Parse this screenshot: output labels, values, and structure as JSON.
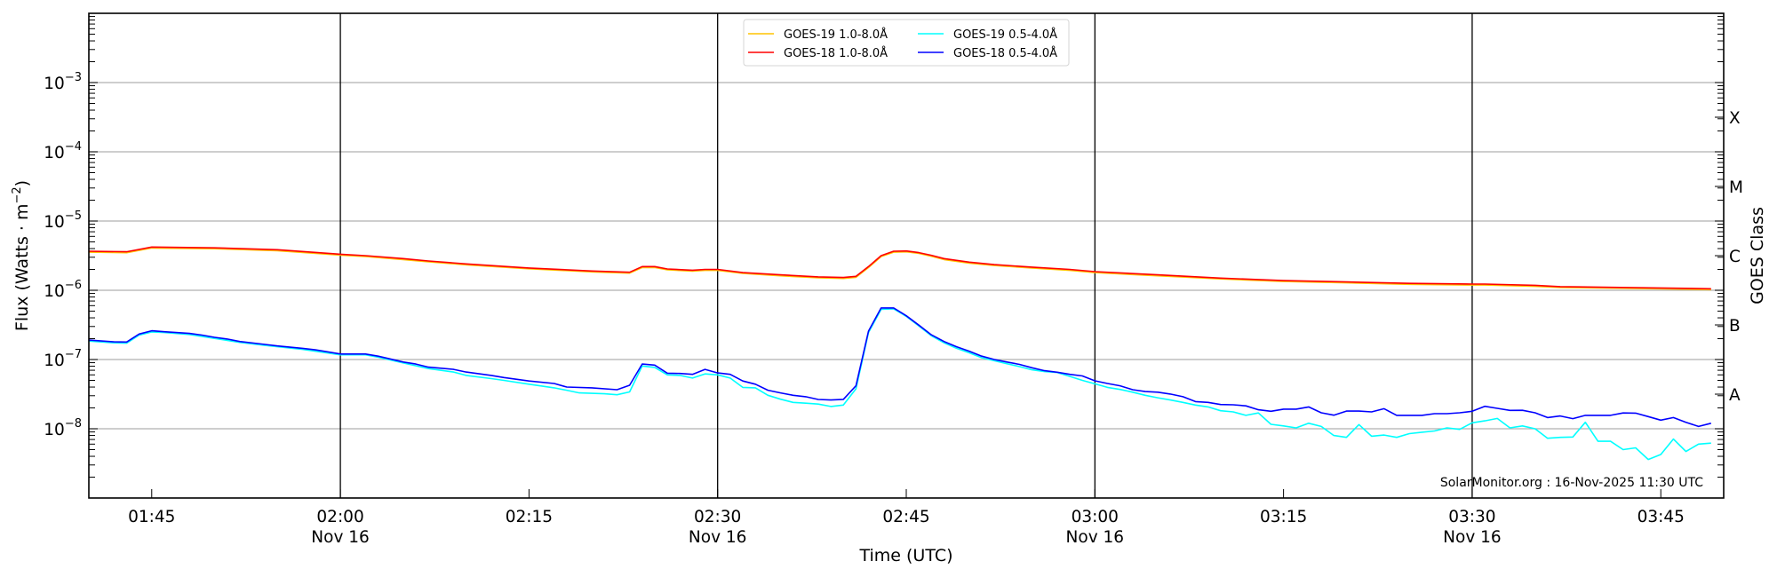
{
  "chart_data": {
    "type": "line",
    "title": "",
    "xlabel": "Time (UTC)",
    "ylabel": {
      "text": "Flux (Watts · m",
      "sup": "−2",
      "close": ")"
    },
    "right_label": "GOES Class",
    "y_scale": "log",
    "ylim": [
      1e-09,
      0.01
    ],
    "xlim": [
      "01:40",
      "03:50"
    ],
    "grid": {
      "horizontal_at_decades": true,
      "vertical_lines_every_minutes": 30
    },
    "legend_placement": "top-center",
    "y_tick_base": "10",
    "y_tick_exponents": [
      "−3",
      "−4",
      "−5",
      "−6",
      "−7",
      "−8"
    ],
    "y_tick_values": [
      0.001,
      0.0001,
      1e-05,
      1e-06,
      1e-07,
      1e-08
    ],
    "x_ticks": [
      {
        "time": "01:45",
        "label": "01:45",
        "date": ""
      },
      {
        "time": "02:00",
        "label": "02:00",
        "date": "Nov 16"
      },
      {
        "time": "02:15",
        "label": "02:15",
        "date": ""
      },
      {
        "time": "02:30",
        "label": "02:30",
        "date": "Nov 16"
      },
      {
        "time": "02:45",
        "label": "02:45",
        "date": ""
      },
      {
        "time": "03:00",
        "label": "03:00",
        "date": "Nov 16"
      },
      {
        "time": "03:15",
        "label": "03:15",
        "date": ""
      },
      {
        "time": "03:30",
        "label": "03:30",
        "date": "Nov 16"
      },
      {
        "time": "03:45",
        "label": "03:45",
        "date": ""
      }
    ],
    "goes_classes": [
      {
        "label": "X",
        "flux": 0.000316
      },
      {
        "label": "M",
        "flux": 3.16e-05
      },
      {
        "label": "C",
        "flux": 3.16e-06
      },
      {
        "label": "B",
        "flux": 3.16e-07
      },
      {
        "label": "A",
        "flux": 3.16e-08
      }
    ],
    "annotation": "SolarMonitor.org : 16-Nov-2025 11:30 UTC",
    "series": [
      {
        "name": "GOES-19 1.0-8.0Å",
        "color": "#ffc400",
        "x": [
          "01:40",
          "01:43",
          "01:45",
          "01:50",
          "01:55",
          "02:00",
          "02:02",
          "02:05",
          "02:07",
          "02:10",
          "02:15",
          "02:20",
          "02:23",
          "02:24",
          "02:25",
          "02:26",
          "02:28",
          "02:29",
          "02:30",
          "02:32",
          "02:35",
          "02:38",
          "02:40",
          "02:41",
          "02:42",
          "02:43",
          "02:44",
          "02:45",
          "02:46",
          "02:47",
          "02:48",
          "02:50",
          "02:52",
          "02:55",
          "02:58",
          "03:00",
          "03:05",
          "03:10",
          "03:15",
          "03:20",
          "03:25",
          "03:30",
          "03:31",
          "03:35",
          "03:37",
          "03:45",
          "03:49"
        ],
        "y": [
          3.55e-06,
          3.49e-06,
          4.08e-06,
          3.98e-06,
          3.73e-06,
          3.22e-06,
          3.07e-06,
          2.78e-06,
          2.57e-06,
          2.33e-06,
          2.04e-06,
          1.84e-06,
          1.77e-06,
          2.13e-06,
          2.13e-06,
          1.97e-06,
          1.89e-06,
          1.94e-06,
          1.94e-06,
          1.75e-06,
          1.62e-06,
          1.51e-06,
          1.48e-06,
          1.54e-06,
          2.13e-06,
          3.07e-06,
          3.55e-06,
          3.59e-06,
          3.4e-06,
          3.1e-06,
          2.78e-06,
          2.47e-06,
          2.28e-06,
          2.1e-06,
          1.94e-06,
          1.8e-06,
          1.62e-06,
          1.46e-06,
          1.34e-06,
          1.28e-06,
          1.22e-06,
          1.19e-06,
          1.19e-06,
          1.14e-06,
          1.1e-06,
          1.05e-06,
          1.02e-06
        ]
      },
      {
        "name": "GOES-18 1.0-8.0Å",
        "color": "#ff0000",
        "x": [
          "01:40",
          "01:43",
          "01:45",
          "01:50",
          "01:55",
          "02:00",
          "02:02",
          "02:05",
          "02:07",
          "02:10",
          "02:15",
          "02:20",
          "02:23",
          "02:24",
          "02:25",
          "02:26",
          "02:28",
          "02:29",
          "02:30",
          "02:32",
          "02:35",
          "02:38",
          "02:40",
          "02:41",
          "02:42",
          "02:43",
          "02:44",
          "02:45",
          "02:46",
          "02:47",
          "02:48",
          "02:50",
          "02:52",
          "02:55",
          "02:58",
          "03:00",
          "03:05",
          "03:10",
          "03:15",
          "03:20",
          "03:25",
          "03:30",
          "03:31",
          "03:35",
          "03:37",
          "03:45",
          "03:49"
        ],
        "y": [
          3.66e-06,
          3.6e-06,
          4.21e-06,
          4.1e-06,
          3.85e-06,
          3.32e-06,
          3.16e-06,
          2.87e-06,
          2.65e-06,
          2.4e-06,
          2.1e-06,
          1.9e-06,
          1.82e-06,
          2.2e-06,
          2.2e-06,
          2.03e-06,
          1.95e-06,
          2e-06,
          2e-06,
          1.8e-06,
          1.67e-06,
          1.56e-06,
          1.53e-06,
          1.59e-06,
          2.2e-06,
          3.16e-06,
          3.66e-06,
          3.7e-06,
          3.5e-06,
          3.2e-06,
          2.87e-06,
          2.55e-06,
          2.35e-06,
          2.16e-06,
          2e-06,
          1.86e-06,
          1.67e-06,
          1.5e-06,
          1.38e-06,
          1.32e-06,
          1.26e-06,
          1.23e-06,
          1.23e-06,
          1.18e-06,
          1.13e-06,
          1.08e-06,
          1.05e-06
        ]
      },
      {
        "name": "GOES-19 0.5-4.0Å",
        "color": "#00ffff",
        "x": [
          "01:40",
          "01:42",
          "01:43",
          "01:44",
          "01:45",
          "01:46",
          "01:48",
          "01:50",
          "01:52",
          "01:54",
          "01:57",
          "02:00",
          "02:02",
          "02:03",
          "02:05",
          "02:07",
          "02:09",
          "02:10",
          "02:12",
          "02:13",
          "02:15",
          "02:17",
          "02:18",
          "02:19",
          "02:21",
          "02:22",
          "02:23",
          "02:24",
          "02:25",
          "02:26",
          "02:27",
          "02:28",
          "02:29",
          "02:30",
          "02:31",
          "02:32",
          "02:33",
          "02:34",
          "02:35",
          "02:36",
          "02:37",
          "02:38",
          "02:39",
          "02:40",
          "02:41",
          "02:42",
          "02:43",
          "02:44",
          "02:45",
          "02:46",
          "02:47",
          "02:48",
          "02:49",
          "02:50",
          "02:51",
          "02:52",
          "02:53",
          "02:54",
          "02:55",
          "02:56",
          "02:57",
          "02:58",
          "02:59",
          "03:00",
          "03:01",
          "03:02",
          "03:03",
          "03:04",
          "03:05",
          "03:06",
          "03:07",
          "03:08",
          "03:09",
          "03:10",
          "03:11",
          "03:12",
          "03:13",
          "03:14",
          "03:15",
          "03:16",
          "03:17",
          "03:18",
          "03:19",
          "03:20",
          "03:21",
          "03:22",
          "03:23",
          "03:24",
          "03:25",
          "03:26",
          "03:27",
          "03:28",
          "03:29",
          "03:30",
          "03:31",
          "03:32",
          "03:33",
          "03:34",
          "03:35",
          "03:36",
          "03:37",
          "03:38",
          "03:39",
          "03:40",
          "03:41",
          "03:42",
          "03:43",
          "03:44",
          "03:45",
          "03:46",
          "03:47",
          "03:48",
          "03:49"
        ],
        "y": [
          1.85e-07,
          1.74e-07,
          1.72e-07,
          2.25e-07,
          2.5e-07,
          2.45e-07,
          2.3e-07,
          2.02e-07,
          1.77e-07,
          1.6e-07,
          1.4e-07,
          1.17e-07,
          1.17e-07,
          1.08e-07,
          8.9e-08,
          7.4e-08,
          6.6e-08,
          5.9e-08,
          5.3e-08,
          5e-08,
          4.4e-08,
          3.9e-08,
          3.6e-08,
          3.3e-08,
          3.2e-08,
          3.1e-08,
          3.4e-08,
          8.05e-08,
          7.7e-08,
          6e-08,
          5.9e-08,
          5.4e-08,
          6.2e-08,
          6e-08,
          5.4e-08,
          3.96e-08,
          3.9e-08,
          3.04e-08,
          2.67e-08,
          2.4e-08,
          2.34e-08,
          2.27e-08,
          2.1e-08,
          2.2e-08,
          3.78e-08,
          2.45e-07,
          5.3e-07,
          5.4e-07,
          4.2e-07,
          3.05e-07,
          2.2e-07,
          1.74e-07,
          1.45e-07,
          1.25e-07,
          1.06e-07,
          9.6e-08,
          8.7e-08,
          7.9e-08,
          7.1e-08,
          6.7e-08,
          6.5e-08,
          5.7e-08,
          5e-08,
          4.45e-08,
          3.96e-08,
          3.7e-08,
          3.37e-08,
          3.04e-08,
          2.8e-08,
          2.6e-08,
          2.4e-08,
          2.2e-08,
          2.07e-08,
          1.82e-08,
          1.75e-08,
          1.56e-08,
          1.69e-08,
          1.16e-08,
          1.1e-08,
          1.03e-08,
          1.2e-08,
          1.08e-08,
          8e-09,
          7.5e-09,
          1.15e-08,
          7.8e-09,
          8.1e-09,
          7.5e-09,
          8.5e-09,
          8.9e-09,
          9.3e-09,
          1.03e-08,
          9.8e-09,
          1.22e-08,
          1.3e-08,
          1.41e-08,
          1.03e-08,
          1.1e-08,
          1e-08,
          7.3e-09,
          7.5e-09,
          7.6e-09,
          1.24e-08,
          6.6e-09,
          6.6e-09,
          5e-09,
          5.3e-09,
          3.6e-09,
          4.25e-09,
          7.1e-09,
          4.7e-09,
          6e-09,
          6.2e-09
        ]
      },
      {
        "name": "GOES-18 0.5-4.0Å",
        "color": "#0000ff",
        "x": [
          "01:40",
          "01:42",
          "01:43",
          "01:44",
          "01:45",
          "01:46",
          "01:48",
          "01:49",
          "01:50",
          "01:51",
          "01:52",
          "01:54",
          "01:55",
          "01:57",
          "01:58",
          "02:00",
          "02:02",
          "02:03",
          "02:05",
          "02:06",
          "02:07",
          "02:09",
          "02:10",
          "02:12",
          "02:13",
          "02:15",
          "02:17",
          "02:18",
          "02:20",
          "02:22",
          "02:23",
          "02:24",
          "02:25",
          "02:26",
          "02:27",
          "02:28",
          "02:29",
          "02:30",
          "02:31",
          "02:32",
          "02:33",
          "02:34",
          "02:35",
          "02:36",
          "02:37",
          "02:38",
          "02:39",
          "02:40",
          "02:41",
          "02:42",
          "02:43",
          "02:44",
          "02:45",
          "02:46",
          "02:47",
          "02:48",
          "02:49",
          "02:50",
          "02:51",
          "02:52",
          "02:53",
          "02:54",
          "02:55",
          "02:56",
          "02:57",
          "02:58",
          "02:59",
          "03:00",
          "03:01",
          "03:02",
          "03:03",
          "03:04",
          "03:05",
          "03:06",
          "03:07",
          "03:08",
          "03:09",
          "03:10",
          "03:11",
          "03:12",
          "03:13",
          "03:14",
          "03:15",
          "03:16",
          "03:17",
          "03:18",
          "03:19",
          "03:20",
          "03:21",
          "03:22",
          "03:23",
          "03:24",
          "03:25",
          "03:26",
          "03:27",
          "03:28",
          "03:29",
          "03:30",
          "03:31",
          "03:32",
          "03:33",
          "03:34",
          "03:35",
          "03:36",
          "03:37",
          "03:38",
          "03:39",
          "03:40",
          "03:41",
          "03:42",
          "03:43",
          "03:44",
          "03:45",
          "03:46",
          "03:47",
          "03:48",
          "03:49"
        ],
        "y": [
          1.91e-07,
          1.8e-07,
          1.79e-07,
          2.33e-07,
          2.6e-07,
          2.52e-07,
          2.38e-07,
          2.25e-07,
          2.09e-07,
          1.98e-07,
          1.82e-07,
          1.65e-07,
          1.57e-07,
          1.45e-07,
          1.38e-07,
          1.2e-07,
          1.2e-07,
          1.12e-07,
          9.2e-08,
          8.6e-08,
          7.75e-08,
          7.2e-08,
          6.6e-08,
          5.9e-08,
          5.5e-08,
          4.9e-08,
          4.5e-08,
          4e-08,
          3.9e-08,
          3.66e-08,
          4.25e-08,
          8.6e-08,
          8.3e-08,
          6.35e-08,
          6.3e-08,
          6.1e-08,
          7.2e-08,
          6.4e-08,
          6.1e-08,
          4.9e-08,
          4.4e-08,
          3.6e-08,
          3.3e-08,
          3.04e-08,
          2.9e-08,
          2.65e-08,
          2.6e-08,
          2.66e-08,
          4.17e-08,
          2.57e-07,
          5.55e-07,
          5.55e-07,
          4.28e-07,
          3.13e-07,
          2.27e-07,
          1.82e-07,
          1.53e-07,
          1.32e-07,
          1.12e-07,
          1e-07,
          9.2e-08,
          8.5e-08,
          7.6e-08,
          6.9e-08,
          6.55e-08,
          6.1e-08,
          5.8e-08,
          4.92e-08,
          4.5e-08,
          4.17e-08,
          3.67e-08,
          3.45e-08,
          3.37e-08,
          3.17e-08,
          2.9e-08,
          2.47e-08,
          2.4e-08,
          2.24e-08,
          2.22e-08,
          2.14e-08,
          1.88e-08,
          1.79e-08,
          1.92e-08,
          1.92e-08,
          2.07e-08,
          1.7e-08,
          1.57e-08,
          1.8e-08,
          1.8e-08,
          1.75e-08,
          1.95e-08,
          1.56e-08,
          1.56e-08,
          1.56e-08,
          1.65e-08,
          1.65e-08,
          1.7e-08,
          1.79e-08,
          2.11e-08,
          1.97e-08,
          1.84e-08,
          1.85e-08,
          1.7e-08,
          1.45e-08,
          1.53e-08,
          1.4e-08,
          1.56e-08,
          1.56e-08,
          1.56e-08,
          1.69e-08,
          1.68e-08,
          1.5e-08,
          1.33e-08,
          1.45e-08,
          1.24e-08,
          1.08e-08,
          1.2e-08
        ]
      }
    ]
  }
}
